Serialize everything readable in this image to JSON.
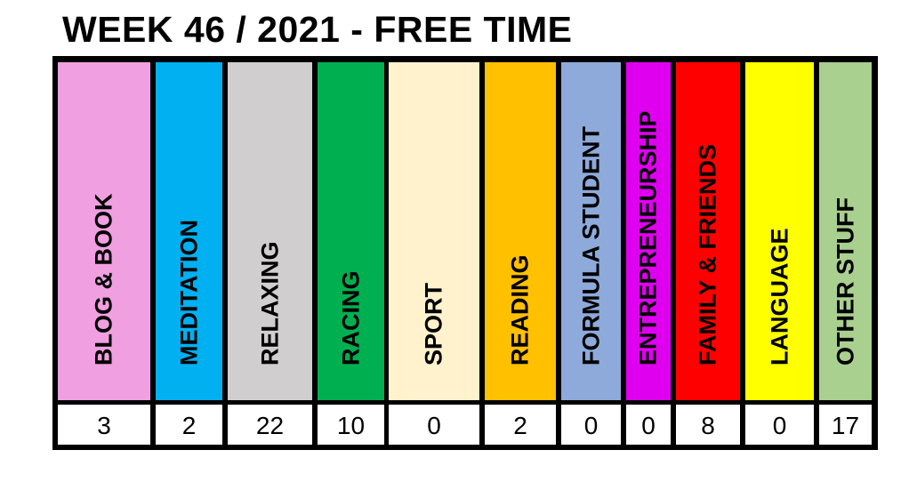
{
  "chart_data": {
    "type": "table",
    "title": "WEEK 46 / 2021 - FREE TIME",
    "categories": [
      "BLOG & BOOK",
      "MEDITATION",
      "RELAXING",
      "RACING",
      "SPORT",
      "READING",
      "FORMULA STUDENT",
      "ENTREPRENEURSHIP",
      "FAMILY & FRIENDS",
      "LANGUAGE",
      "OTHER STUFF"
    ],
    "values": [
      3,
      2,
      22,
      10,
      0,
      2,
      0,
      0,
      8,
      0,
      17
    ],
    "colors": [
      "#f09fe0",
      "#00b0f0",
      "#d0cece",
      "#00b050",
      "#fff2cc",
      "#ffc000",
      "#8eaadb",
      "#e000f0",
      "#ff0000",
      "#ffff00",
      "#a9d08e"
    ]
  }
}
